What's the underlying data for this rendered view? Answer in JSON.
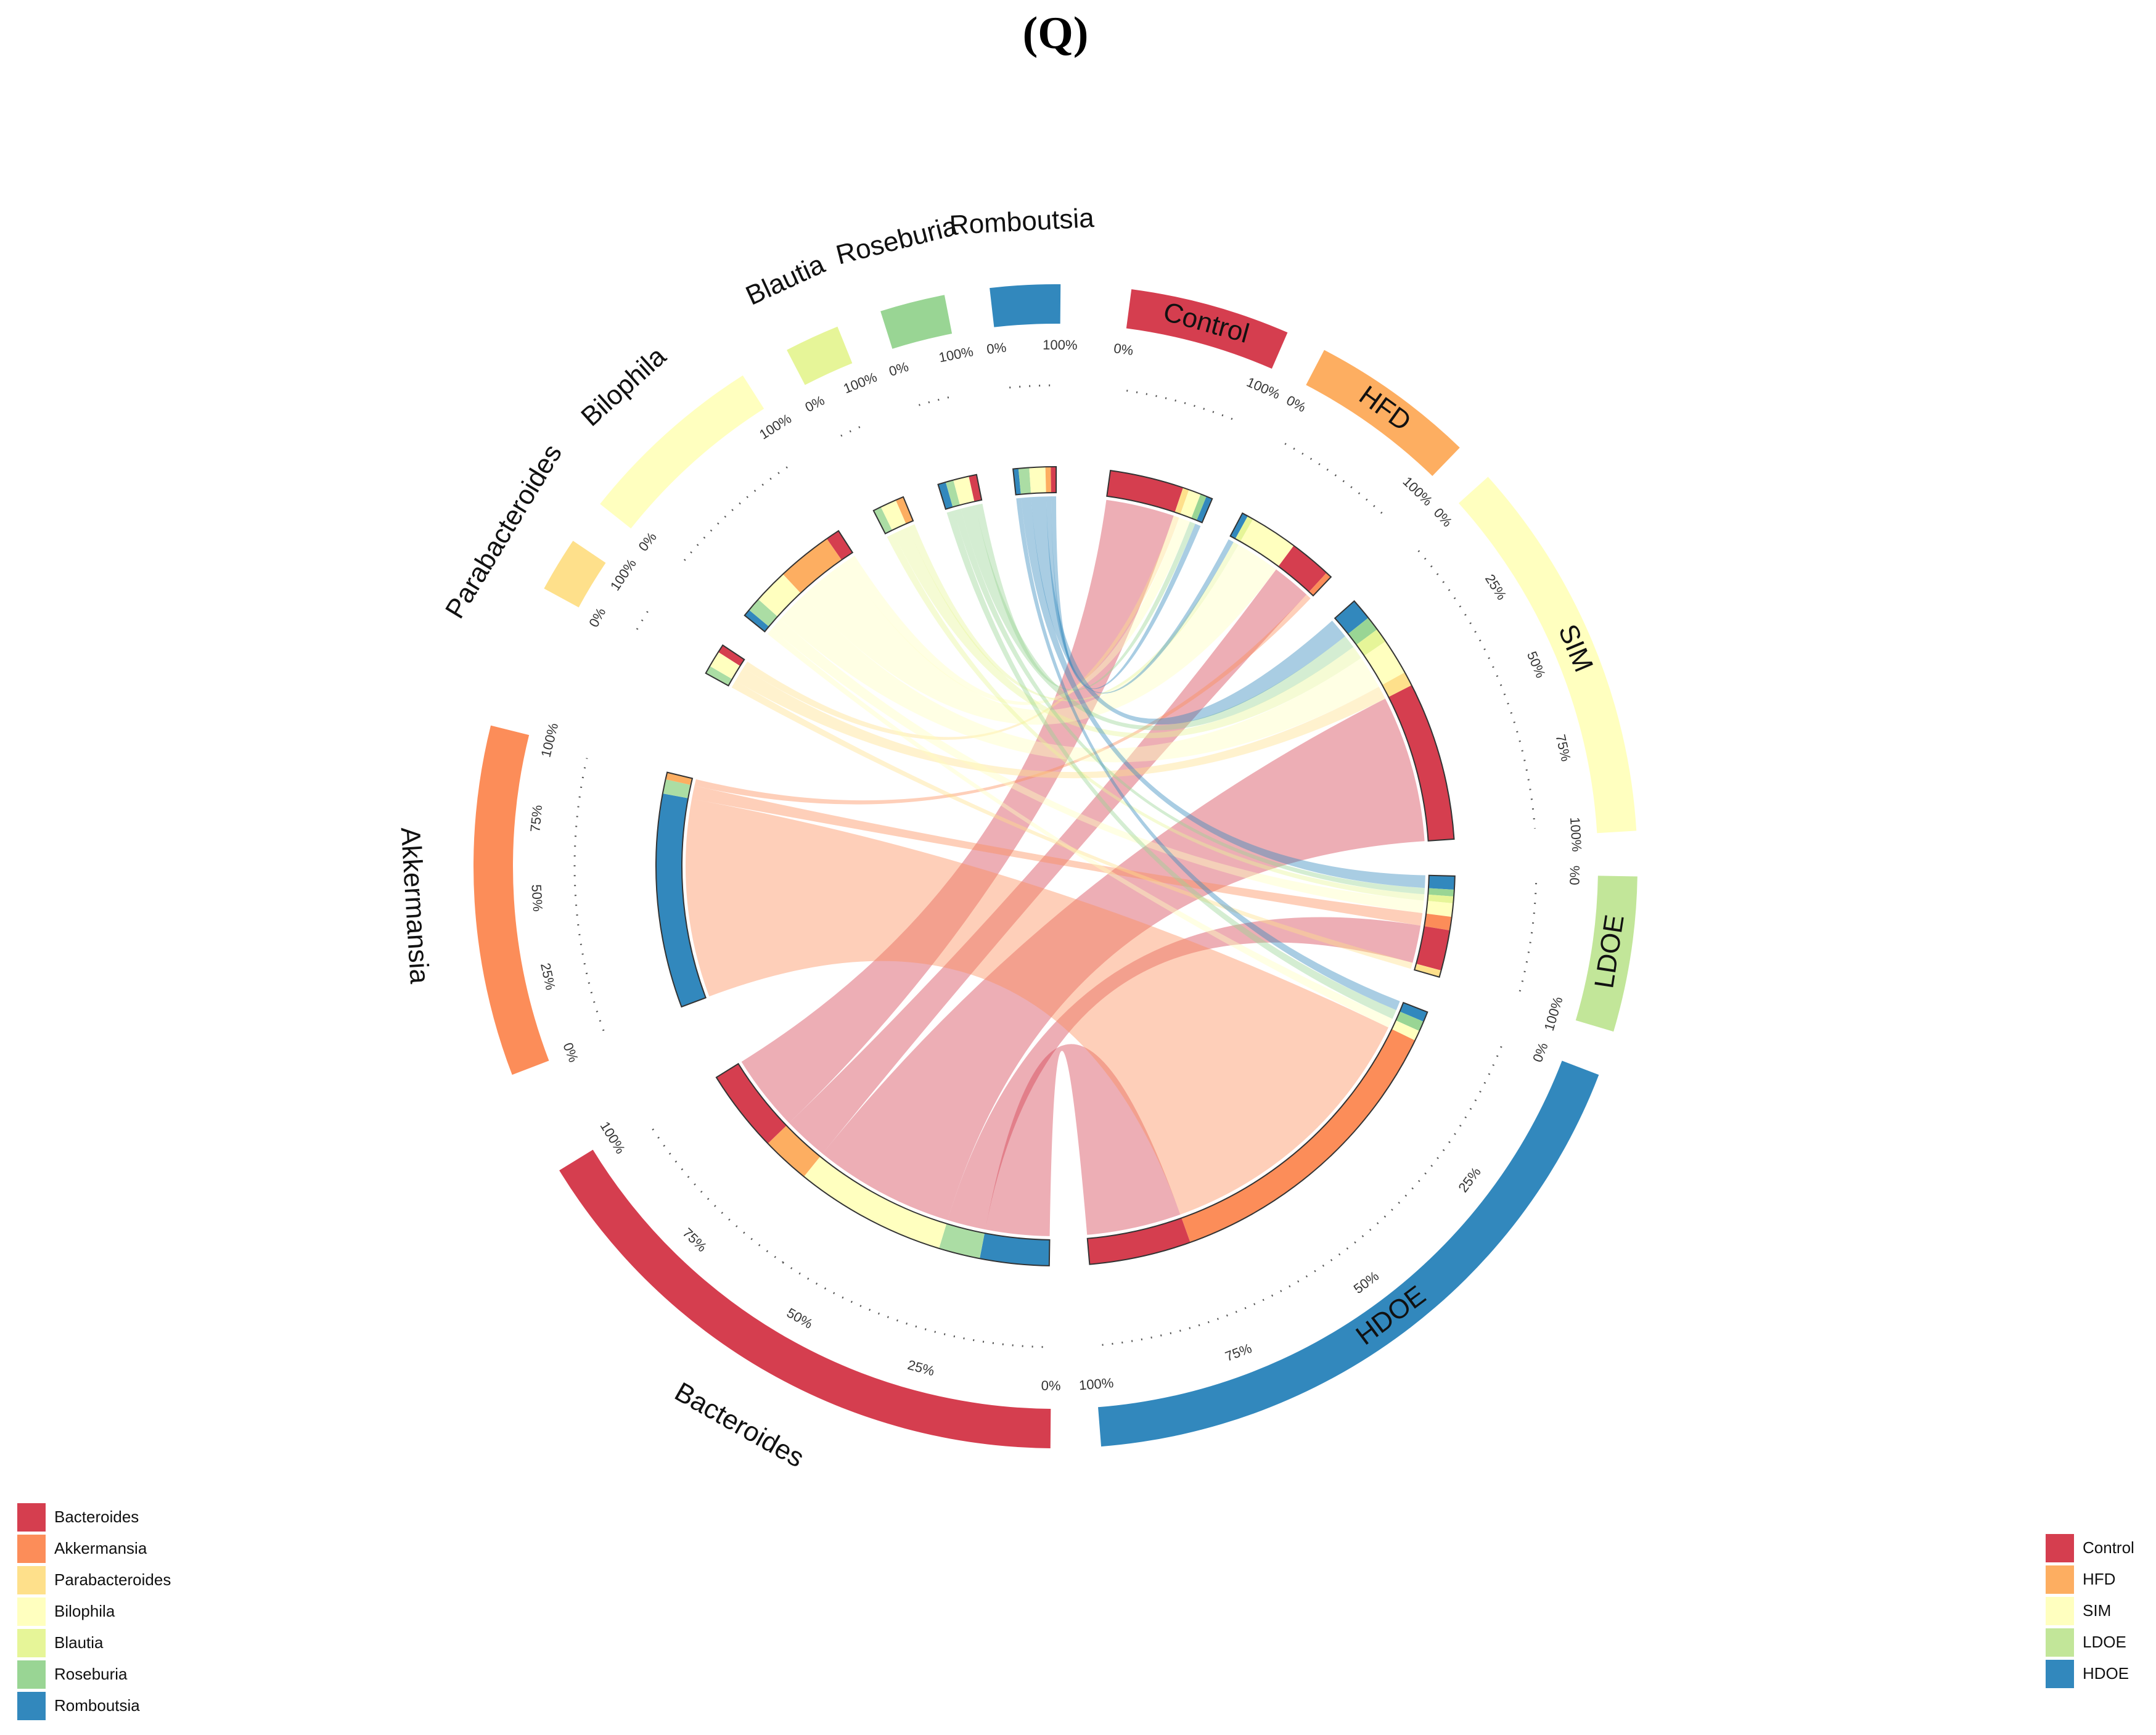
{
  "panel_label": "(Q)",
  "chart_data": {
    "type": "chord",
    "genera": [
      {
        "name": "Bacteroides",
        "color": "#D53E4F"
      },
      {
        "name": "Akkermansia",
        "color": "#F46D43"
      },
      {
        "name": "Parabacteroides",
        "color": "#FDAE61"
      },
      {
        "name": "Bilophila",
        "color": "#FEE08B"
      },
      {
        "name": "Blautia",
        "color": "#E6F598"
      },
      {
        "name": "Roseburia",
        "color": "#ABDDA4"
      },
      {
        "name": "Romboutsia",
        "color": "#3288BD"
      }
    ],
    "groups": [
      {
        "name": "Control",
        "color": "#D53E4F"
      },
      {
        "name": "HFD",
        "color": "#FDAE61"
      },
      {
        "name": "SIM",
        "color": "#FFFFBF"
      },
      {
        "name": "LDOE",
        "color": "#ABDDA4"
      },
      {
        "name": "HDOE",
        "color": "#3288BD"
      }
    ],
    "sectors": [
      {
        "name": "Bacteroides",
        "start_deg": 180.5,
        "end_deg": 238.5,
        "color": "#D53E4F",
        "label_display": "Bacteroides",
        "ticks": [
          "0%",
          "25%",
          "50%",
          "75%",
          "100%"
        ]
      },
      {
        "name": "Akkermansia",
        "start_deg": 249.0,
        "end_deg": 284.0,
        "color": "#FC8D59",
        "label_display": "Akkermansia",
        "ticks": [
          "0%",
          "25%",
          "50%",
          "75%",
          "100%"
        ]
      },
      {
        "name": "Parabacteroides",
        "start_deg": 298.5,
        "end_deg": 304.0,
        "color": "#FEE08B",
        "label_display": "Parabacteroides",
        "ticks": [
          "0%",
          "100%"
        ]
      },
      {
        "name": "Bilophila",
        "start_deg": 308.5,
        "end_deg": 327.5,
        "color": "#FFFFBF",
        "label_display": "Bilophila",
        "ticks": [
          "0%",
          "100%"
        ]
      },
      {
        "name": "Blautia",
        "start_deg": 332.5,
        "end_deg": 338.0,
        "color": "#E6F598",
        "label_display": "Blautia",
        "ticks": [
          "0%",
          "100%"
        ]
      },
      {
        "name": "Roseburia",
        "start_deg": 342.5,
        "end_deg": 349.0,
        "color": "#99D594",
        "label_display": "Roseburia",
        "ticks": [
          "0%",
          "100%"
        ]
      },
      {
        "name": "Romboutsia",
        "start_deg": 353.5,
        "end_deg": 360.5,
        "color": "#3288BD",
        "label_display": "Romboutsia",
        "ticks": [
          "0%",
          "100%"
        ]
      },
      {
        "name": "Control",
        "start_deg": 7.5,
        "end_deg": 23.5,
        "color": "#D53E4F",
        "label_display": "Control",
        "ticks": [
          "0%",
          "100%"
        ]
      },
      {
        "name": "HFD",
        "start_deg": 27.5,
        "end_deg": 44.0,
        "color": "#FDAE61",
        "label_display": "HFD",
        "ticks": [
          "0%",
          "100%"
        ]
      },
      {
        "name": "SIM",
        "start_deg": 48.0,
        "end_deg": 86.5,
        "color": "#FFFFBF",
        "label_display": "SIM",
        "ticks": [
          "0%",
          "25%",
          "50%",
          "75%",
          "100%"
        ]
      },
      {
        "name": "LDOE",
        "start_deg": 91.0,
        "end_deg": 106.5,
        "color": "#C2E699",
        "label_display": "LDOE",
        "ticks": [
          "0%",
          "100%"
        ]
      },
      {
        "name": "HDOE",
        "start_deg": 111.0,
        "end_deg": 175.5,
        "color": "#3288BD",
        "label_display": "HDOE",
        "ticks": [
          "0%",
          "25%",
          "50%",
          "75%",
          "100%"
        ]
      }
    ],
    "tick_labels_extra": [
      "100%0%",
      "100%0%",
      "100%0%",
      "100%0%"
    ],
    "inner_stacks": {
      "Bacteroides": [
        "HDOE",
        "LDOE",
        "SIM",
        "HFD",
        "Control"
      ],
      "Akkermansia": [
        "HDOE",
        "LDOE"
      ],
      "Parabacteroides": [
        "HDOE",
        "LDOE",
        "SIM",
        "HFD",
        "Control"
      ],
      "Bilophila": [
        "HDOE",
        "LDOE",
        "SIM",
        "HFD",
        "Control"
      ],
      "Blautia": [
        "HDOE",
        "LDOE",
        "SIM",
        "HFD",
        "Control"
      ],
      "Roseburia": [
        "HDOE",
        "LDOE",
        "SIM",
        "HFD",
        "Control"
      ],
      "Romboutsia": [
        "HDOE",
        "LDOE",
        "SIM",
        "HFD",
        "Control"
      ],
      "Control": [
        "HDOE",
        "LDOE",
        "SIM",
        "Bacteroides"
      ],
      "HFD": [
        "Romboutsia",
        "Roseburia",
        "Blautia",
        "Bilophila",
        "Bacteroides"
      ],
      "SIM": [
        "Romboutsia",
        "Roseburia",
        "Blautia",
        "Bilophila",
        "Parabacteroides",
        "Bacteroides"
      ],
      "LDOE": [
        "Romboutsia",
        "Roseburia",
        "Blautia",
        "Bilophila",
        "Akkermansia",
        "Bacteroides"
      ],
      "HDOE": [
        "Romboutsia",
        "Roseburia",
        "Bilophila",
        "Akkermansia",
        "Bacteroides"
      ]
    },
    "links": [
      {
        "from": "Bacteroides",
        "to": "Control",
        "value": 12,
        "color": "#D53E4F"
      },
      {
        "from": "Bacteroides",
        "to": "HFD",
        "value": 7,
        "color": "#D53E4F"
      },
      {
        "from": "Bacteroides",
        "to": "SIM",
        "value": 22,
        "color": "#D53E4F"
      },
      {
        "from": "Bacteroides",
        "to": "LDOE",
        "value": 6,
        "color": "#D53E4F"
      },
      {
        "from": "Bacteroides",
        "to": "HDOE",
        "value": 10,
        "color": "#D53E4F"
      },
      {
        "from": "Akkermansia",
        "to": "HFD",
        "value": 1,
        "color": "#FC8D59"
      },
      {
        "from": "Akkermansia",
        "to": "LDOE",
        "value": 2,
        "color": "#FC8D59"
      },
      {
        "from": "Akkermansia",
        "to": "HDOE",
        "value": 30,
        "color": "#FC8D59"
      },
      {
        "from": "Parabacteroides",
        "to": "Control",
        "value": 1,
        "color": "#FEE08B"
      },
      {
        "from": "Parabacteroides",
        "to": "SIM",
        "value": 2,
        "color": "#FEE08B"
      },
      {
        "from": "Parabacteroides",
        "to": "LDOE",
        "value": 1,
        "color": "#FEE08B"
      },
      {
        "from": "Bilophila",
        "to": "Control",
        "value": 2,
        "color": "#FFFFBF"
      },
      {
        "from": "Bilophila",
        "to": "HFD",
        "value": 8,
        "color": "#FFFFBF"
      },
      {
        "from": "Bilophila",
        "to": "SIM",
        "value": 5,
        "color": "#FFFFBF"
      },
      {
        "from": "Bilophila",
        "to": "LDOE",
        "value": 2,
        "color": "#FFFFBF"
      },
      {
        "from": "Bilophila",
        "to": "HDOE",
        "value": 1,
        "color": "#FFFFBF"
      },
      {
        "from": "Blautia",
        "to": "HFD",
        "value": 1,
        "color": "#E6F598"
      },
      {
        "from": "Blautia",
        "to": "SIM",
        "value": 2,
        "color": "#E6F598"
      },
      {
        "from": "Blautia",
        "to": "LDOE",
        "value": 1,
        "color": "#E6F598"
      },
      {
        "from": "Roseburia",
        "to": "Control",
        "value": 1,
        "color": "#99D594"
      },
      {
        "from": "Roseburia",
        "to": "SIM",
        "value": 2,
        "color": "#99D594"
      },
      {
        "from": "Roseburia",
        "to": "LDOE",
        "value": 1,
        "color": "#99D594"
      },
      {
        "from": "Roseburia",
        "to": "HDOE",
        "value": 1,
        "color": "#99D594"
      },
      {
        "from": "Romboutsia",
        "to": "Control",
        "value": 1,
        "color": "#3288BD"
      },
      {
        "from": "Romboutsia",
        "to": "HFD",
        "value": 1,
        "color": "#3288BD"
      },
      {
        "from": "Romboutsia",
        "to": "SIM",
        "value": 3,
        "color": "#3288BD"
      },
      {
        "from": "Romboutsia",
        "to": "LDOE",
        "value": 2,
        "color": "#3288BD"
      },
      {
        "from": "Romboutsia",
        "to": "HDOE",
        "value": 1,
        "color": "#3288BD"
      }
    ],
    "legend_left": [
      {
        "label": "Bacteroides",
        "color": "#D53E4F"
      },
      {
        "label": "Akkermansia",
        "color": "#FC8D59"
      },
      {
        "label": "Parabacteroides",
        "color": "#FEE08B"
      },
      {
        "label": "Bilophila",
        "color": "#FFFFBF"
      },
      {
        "label": "Blautia",
        "color": "#E6F598"
      },
      {
        "label": "Roseburia",
        "color": "#99D594"
      },
      {
        "label": "Romboutsia",
        "color": "#3288BD"
      }
    ],
    "legend_right": [
      {
        "label": "Control",
        "color": "#D53E4F"
      },
      {
        "label": "HFD",
        "color": "#FDAE61"
      },
      {
        "label": "SIM",
        "color": "#FFFFBF"
      },
      {
        "label": "LDOE",
        "color": "#C2E699"
      },
      {
        "label": "HDOE",
        "color": "#3288BD"
      }
    ]
  }
}
